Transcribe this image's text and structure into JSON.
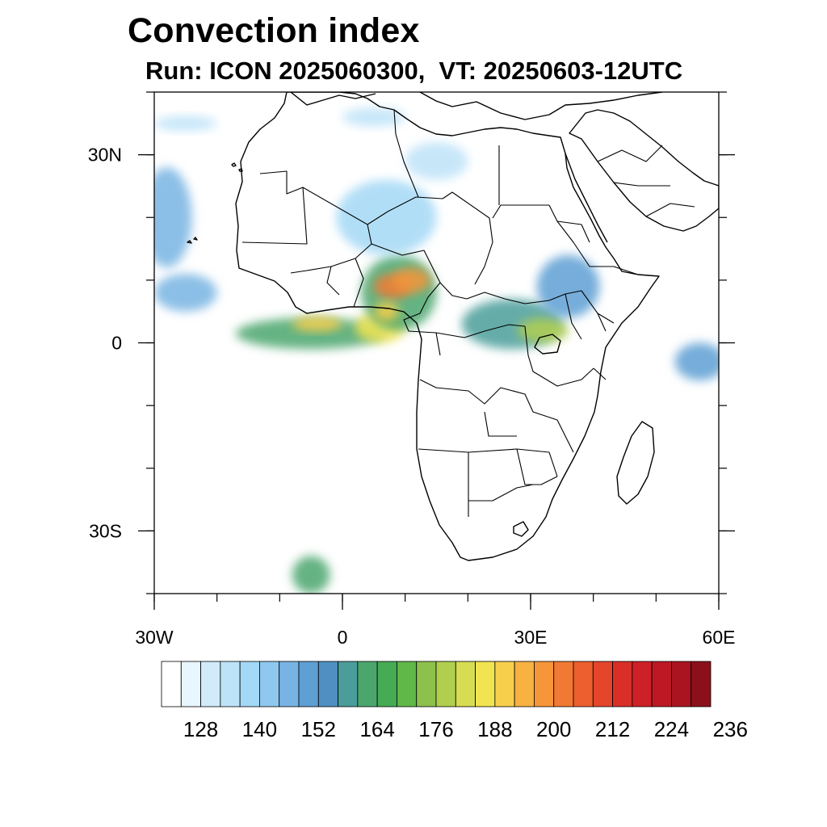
{
  "title": "Convection index",
  "subtitle": "Run: ICON 2025060300,  VT: 20250603-12UTC",
  "map": {
    "lon_range": [
      -30,
      60
    ],
    "lat_range": [
      -40,
      40
    ],
    "lon_ticks": [
      {
        "value": -30,
        "label": "30W"
      },
      {
        "value": 0,
        "label": "0"
      },
      {
        "value": 30,
        "label": "30E"
      },
      {
        "value": 60,
        "label": "60E"
      }
    ],
    "lat_ticks": [
      {
        "value": 30,
        "label": "30N"
      },
      {
        "value": 0,
        "label": "0"
      },
      {
        "value": -30,
        "label": "30S"
      }
    ],
    "minor_lon_step": 10,
    "minor_lat_step": 10,
    "fields": [
      {
        "lon": -5,
        "lat": 1.5,
        "rx": 12,
        "ry": 2.5,
        "level": 10
      },
      {
        "lon": -4,
        "lat": 3,
        "rx": 4,
        "ry": 1.2,
        "level": 17
      },
      {
        "lon": 6,
        "lat": 2.5,
        "rx": 4,
        "ry": 2.5,
        "level": 16
      },
      {
        "lon": 9,
        "lat": 8,
        "rx": 6,
        "ry": 6,
        "level": 10
      },
      {
        "lon": 8,
        "lat": 9,
        "rx": 3,
        "ry": 2,
        "level": 20
      },
      {
        "lon": 11,
        "lat": 10,
        "rx": 3,
        "ry": 2,
        "level": 19
      },
      {
        "lon": 7,
        "lat": 5,
        "rx": 2,
        "ry": 1.5,
        "level": 17
      },
      {
        "lon": 27,
        "lat": 3,
        "rx": 8,
        "ry": 4,
        "level": 9
      },
      {
        "lon": 32,
        "lat": 2,
        "rx": 4,
        "ry": 2,
        "level": 14
      },
      {
        "lon": 36,
        "lat": 9,
        "rx": 5,
        "ry": 5,
        "level": 7
      },
      {
        "lon": -28,
        "lat": 20,
        "rx": 4,
        "ry": 8,
        "level": 6
      },
      {
        "lon": -25,
        "lat": 8,
        "rx": 5,
        "ry": 3,
        "level": 6
      },
      {
        "lon": 7,
        "lat": 20,
        "rx": 8,
        "ry": 6,
        "level": 4
      },
      {
        "lon": 15,
        "lat": 29,
        "rx": 5,
        "ry": 3,
        "level": 3
      },
      {
        "lon": 57,
        "lat": -3,
        "rx": 4,
        "ry": 3,
        "level": 7
      },
      {
        "lon": -5,
        "lat": -37,
        "rx": 3,
        "ry": 3,
        "level": 10
      },
      {
        "lon": 5,
        "lat": 36,
        "rx": 5,
        "ry": 1.5,
        "level": 3
      },
      {
        "lon": -25,
        "lat": 35,
        "rx": 5,
        "ry": 1.2,
        "level": 3
      }
    ]
  },
  "colorbar": {
    "colors": [
      "#ffffff",
      "#e8f6fd",
      "#d1ebfa",
      "#bde3f8",
      "#a3d8f6",
      "#8fc8ee",
      "#78b4e3",
      "#5e9fd4",
      "#4f8fc2",
      "#4a9d9a",
      "#4aa66d",
      "#45ab55",
      "#5fb847",
      "#8cc14c",
      "#b1cf4f",
      "#d6dd52",
      "#f2e451",
      "#f8cf4b",
      "#f7b242",
      "#f6953a",
      "#f27933",
      "#ed5f2e",
      "#e4452b",
      "#da2e29",
      "#ce2027",
      "#be1825",
      "#aa1420",
      "#8c101b"
    ],
    "labels": [
      "128",
      "140",
      "152",
      "164",
      "176",
      "188",
      "200",
      "212",
      "224",
      "236"
    ]
  }
}
